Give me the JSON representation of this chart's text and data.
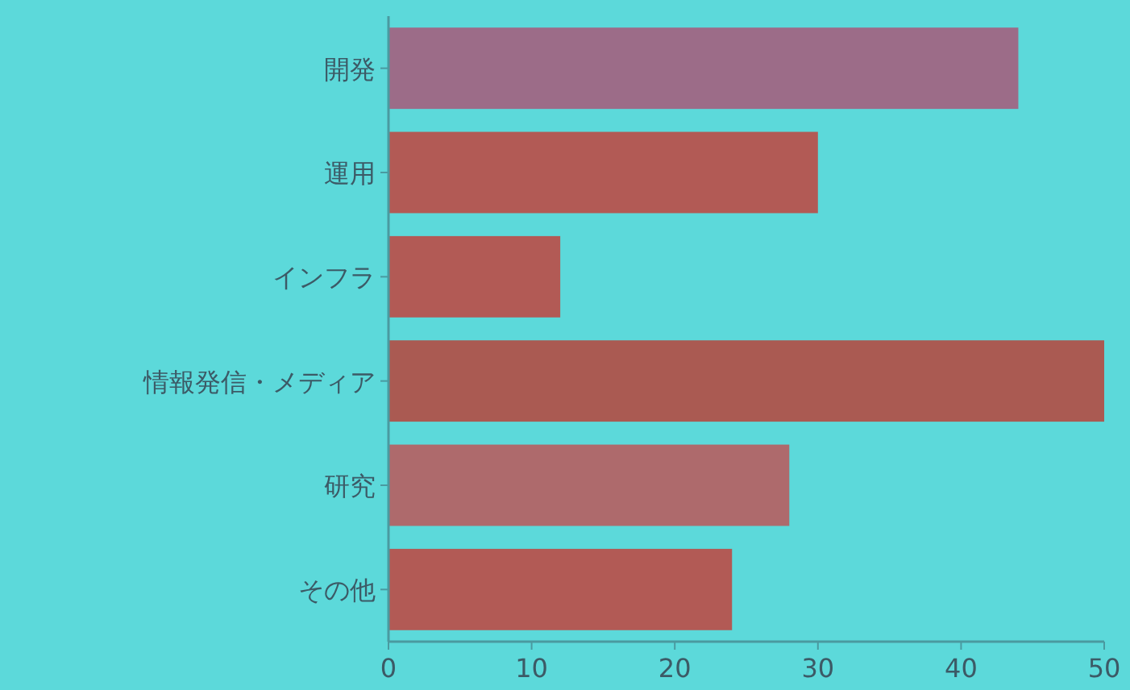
{
  "chart_data": {
    "type": "bar",
    "orientation": "horizontal",
    "categories": [
      "開発",
      "運用",
      "インフラ",
      "情報発信・メディア",
      "研究",
      "その他"
    ],
    "values": [
      44,
      30,
      12,
      50,
      28,
      24
    ],
    "colors": [
      "#9c6c88",
      "#b25a55",
      "#b25a55",
      "#aa5a52",
      "#ae6a6c",
      "#b25a55"
    ],
    "xlim": [
      0,
      50
    ],
    "xticks": [
      0,
      10,
      20,
      30,
      40,
      50
    ],
    "grid": false
  }
}
